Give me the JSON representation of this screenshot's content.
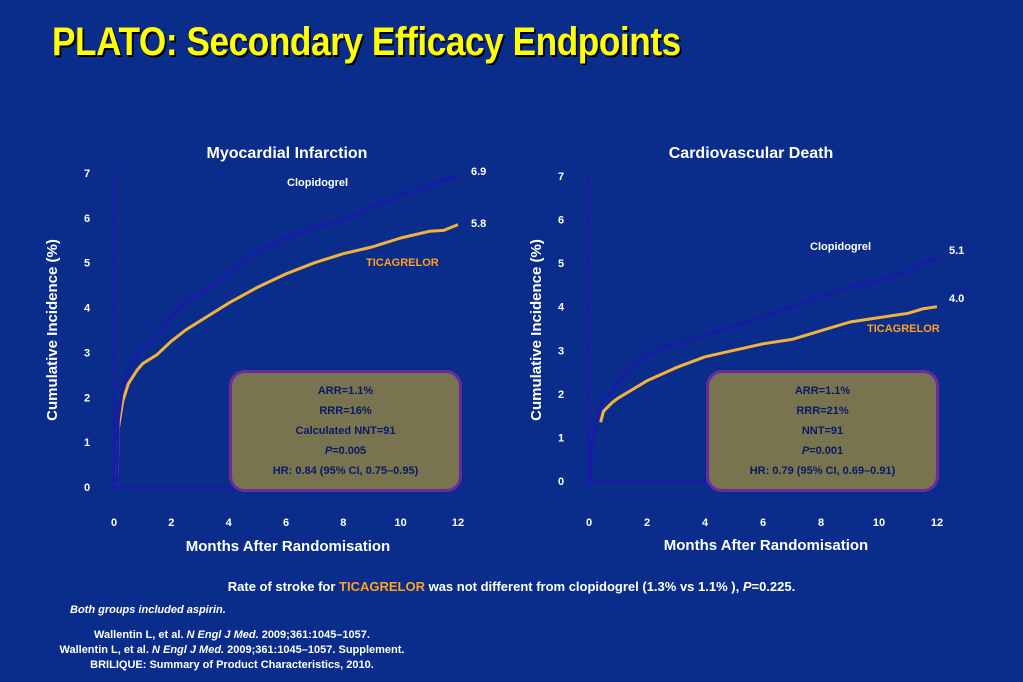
{
  "title": "PLATO: Secondary Efficacy Endpoints",
  "colors": {
    "background": "#0a2d8c",
    "title": "#ffff00",
    "clopidogrel": "#1a1aa8",
    "ticagrelor": "#f2b23c",
    "box_fill": "#77744f",
    "box_border": "#6b2c9a",
    "ticagrelor_text": "#ffa11c"
  },
  "chart_data": [
    {
      "type": "line",
      "title": "Myocardial Infarction",
      "xlabel": "Months After Randomisation",
      "ylabel": "Cumulative Incidence  (%)",
      "xlim": [
        0,
        12
      ],
      "ylim": [
        0,
        7
      ],
      "xticks": [
        0,
        2,
        4,
        6,
        8,
        10,
        12
      ],
      "yticks": [
        0,
        1,
        2,
        3,
        4,
        5,
        6,
        7
      ],
      "series": [
        {
          "name": "Clopidogrel",
          "color": "#1a1aa8",
          "end_label": "6.9",
          "x": [
            0.1,
            0.15,
            0.3,
            0.5,
            0.8,
            1,
            1.5,
            2,
            2.5,
            3,
            3.5,
            4,
            5,
            6,
            7,
            8,
            9,
            10,
            11,
            11.5,
            12
          ],
          "y": [
            0.05,
            1.5,
            2.2,
            2.6,
            2.9,
            3.1,
            3.35,
            3.8,
            4.15,
            4.3,
            4.5,
            4.8,
            5.25,
            5.55,
            5.8,
            5.95,
            6.25,
            6.5,
            6.7,
            6.85,
            6.9
          ]
        },
        {
          "name": "TICAGRELOR",
          "color": "#f2b23c",
          "end_label": "5.8",
          "x": [
            0.1,
            0.15,
            0.3,
            0.5,
            0.8,
            1,
            1.5,
            2,
            2.5,
            3,
            3.5,
            4,
            5,
            6,
            7,
            8,
            9,
            10,
            11,
            11.5,
            12
          ],
          "y": [
            0.05,
            1.3,
            1.9,
            2.3,
            2.6,
            2.75,
            2.95,
            3.25,
            3.5,
            3.7,
            3.9,
            4.1,
            4.45,
            4.75,
            5.0,
            5.2,
            5.35,
            5.55,
            5.7,
            5.72,
            5.85
          ]
        }
      ],
      "stats": {
        "arr": "ARR=1.1%",
        "rrr": "RRR=16%",
        "nnt": "Calculated NNT=91",
        "p_label": "P",
        "p_value": "=0.005",
        "hr": "HR: 0.84 (95% CI, 0.75–0.95)"
      }
    },
    {
      "type": "line",
      "title": "Cardiovascular Death",
      "xlabel": "Months After Randomisation",
      "ylabel": "Cumulative Incidence  (%)",
      "xlim": [
        0,
        12
      ],
      "ylim": [
        0,
        7
      ],
      "xticks": [
        0,
        2,
        4,
        6,
        8,
        10,
        12
      ],
      "yticks": [
        0,
        1,
        2,
        3,
        4,
        5,
        6,
        7
      ],
      "series": [
        {
          "name": "Clopidogrel",
          "color": "#1a1aa8",
          "end_label": "5.1",
          "x": [
            0.05,
            0.1,
            0.3,
            0.5,
            0.8,
            1,
            1.5,
            2,
            2.5,
            3,
            4,
            5,
            6,
            7,
            8,
            9,
            10,
            11,
            11.5,
            12
          ],
          "y": [
            0,
            0.8,
            1.55,
            1.85,
            2.05,
            2.3,
            2.65,
            2.9,
            3.05,
            3.15,
            3.35,
            3.55,
            3.75,
            4.0,
            4.25,
            4.45,
            4.6,
            4.8,
            5.0,
            5.1
          ]
        },
        {
          "name": "TICAGRELOR",
          "color": "#f2b23c",
          "end_label": "4.0",
          "x": [
            0.4,
            0.5,
            0.8,
            1,
            1.5,
            2,
            2.5,
            3,
            4,
            5,
            6,
            7,
            8,
            9,
            10,
            11,
            11.5,
            12
          ],
          "y": [
            1.35,
            1.6,
            1.8,
            1.9,
            2.1,
            2.3,
            2.45,
            2.6,
            2.85,
            3.0,
            3.15,
            3.25,
            3.45,
            3.65,
            3.75,
            3.85,
            3.95,
            4.0
          ]
        }
      ],
      "stats": {
        "arr": "ARR=1.1%",
        "rrr": "RRR=21%",
        "nnt": "NNT=91",
        "p_label": "P",
        "p_value": "=0.001",
        "hr": "HR: 0.79 (95% CI, 0.69–0.91)"
      }
    }
  ],
  "footer": {
    "stroke_before": "Rate of stroke for ",
    "stroke_drug": "TICAGRELOR",
    "stroke_after": " was not different from clopidogrel (1.3% vs 1.1% ), ",
    "stroke_p_label": "P",
    "stroke_p_value": "=0.225.",
    "aspirin_note": "Both groups included aspirin.",
    "ref1_a": "Wallentin L, et al. ",
    "ref1_journal": "N Engl J Med.",
    "ref1_b": " 2009;361:1045–1057.",
    "ref2_a": "Wallentin L, et al. ",
    "ref2_journal": "N Engl J Med.",
    "ref2_b": " 2009;361:1045–1057. Supplement.",
    "ref3": "BRILIQUE: Summary of Product Characteristics, 2010."
  }
}
